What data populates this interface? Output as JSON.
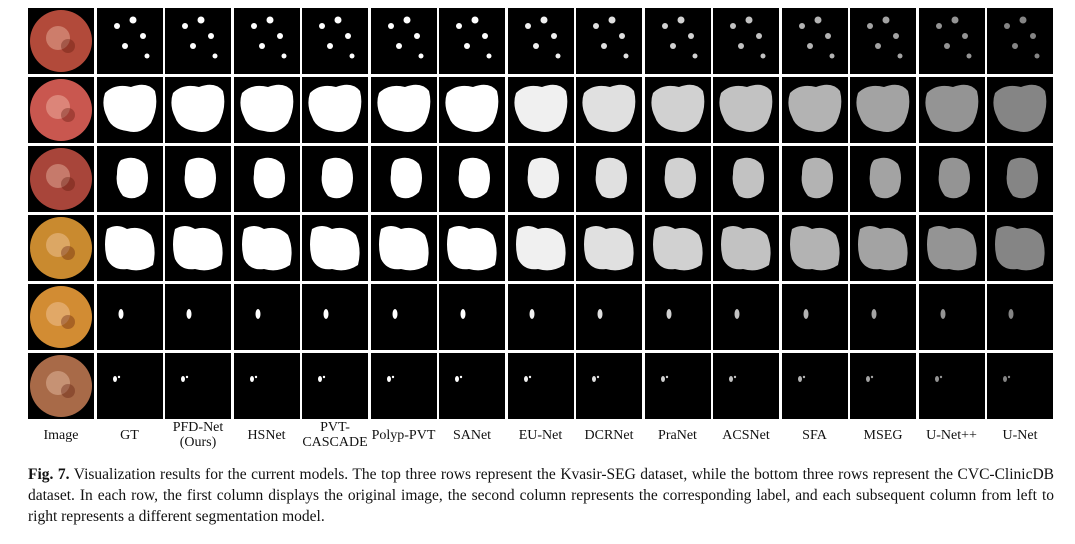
{
  "columns": [
    "Image",
    "GT",
    "PFD-Net\n(Ours)",
    "HSNet",
    "PVT-\nCASCADE",
    "Polyp-PVT",
    "SANet",
    "EU-Net",
    "DCRNet",
    "PraNet",
    "ACSNet",
    "SFA",
    "MSEG",
    "U-Net++",
    "U-Net"
  ],
  "caption": {
    "lead": "Fig. 7.",
    "text": " Visualization results for the current models. The top three rows represent the Kvasir-SEG dataset, while the bottom three rows represent the CVC-ClinicDB dataset. In each row, the first column displays the original image, the second column represents the corresponding label, and each subsequent column from left to right represents a different segmentation model."
  },
  "rows": [
    {
      "dataset": "Kvasir-SEG",
      "mask": "dots"
    },
    {
      "dataset": "Kvasir-SEG",
      "mask": "wide"
    },
    {
      "dataset": "Kvasir-SEG",
      "mask": "blob"
    },
    {
      "dataset": "CVC-ClinicDB",
      "mask": "large"
    },
    {
      "dataset": "CVC-ClinicDB",
      "mask": "small"
    },
    {
      "dataset": "CVC-ClinicDB",
      "mask": "tiny"
    }
  ],
  "colors": {
    "mask": "#ffffff",
    "background": "#000000"
  }
}
